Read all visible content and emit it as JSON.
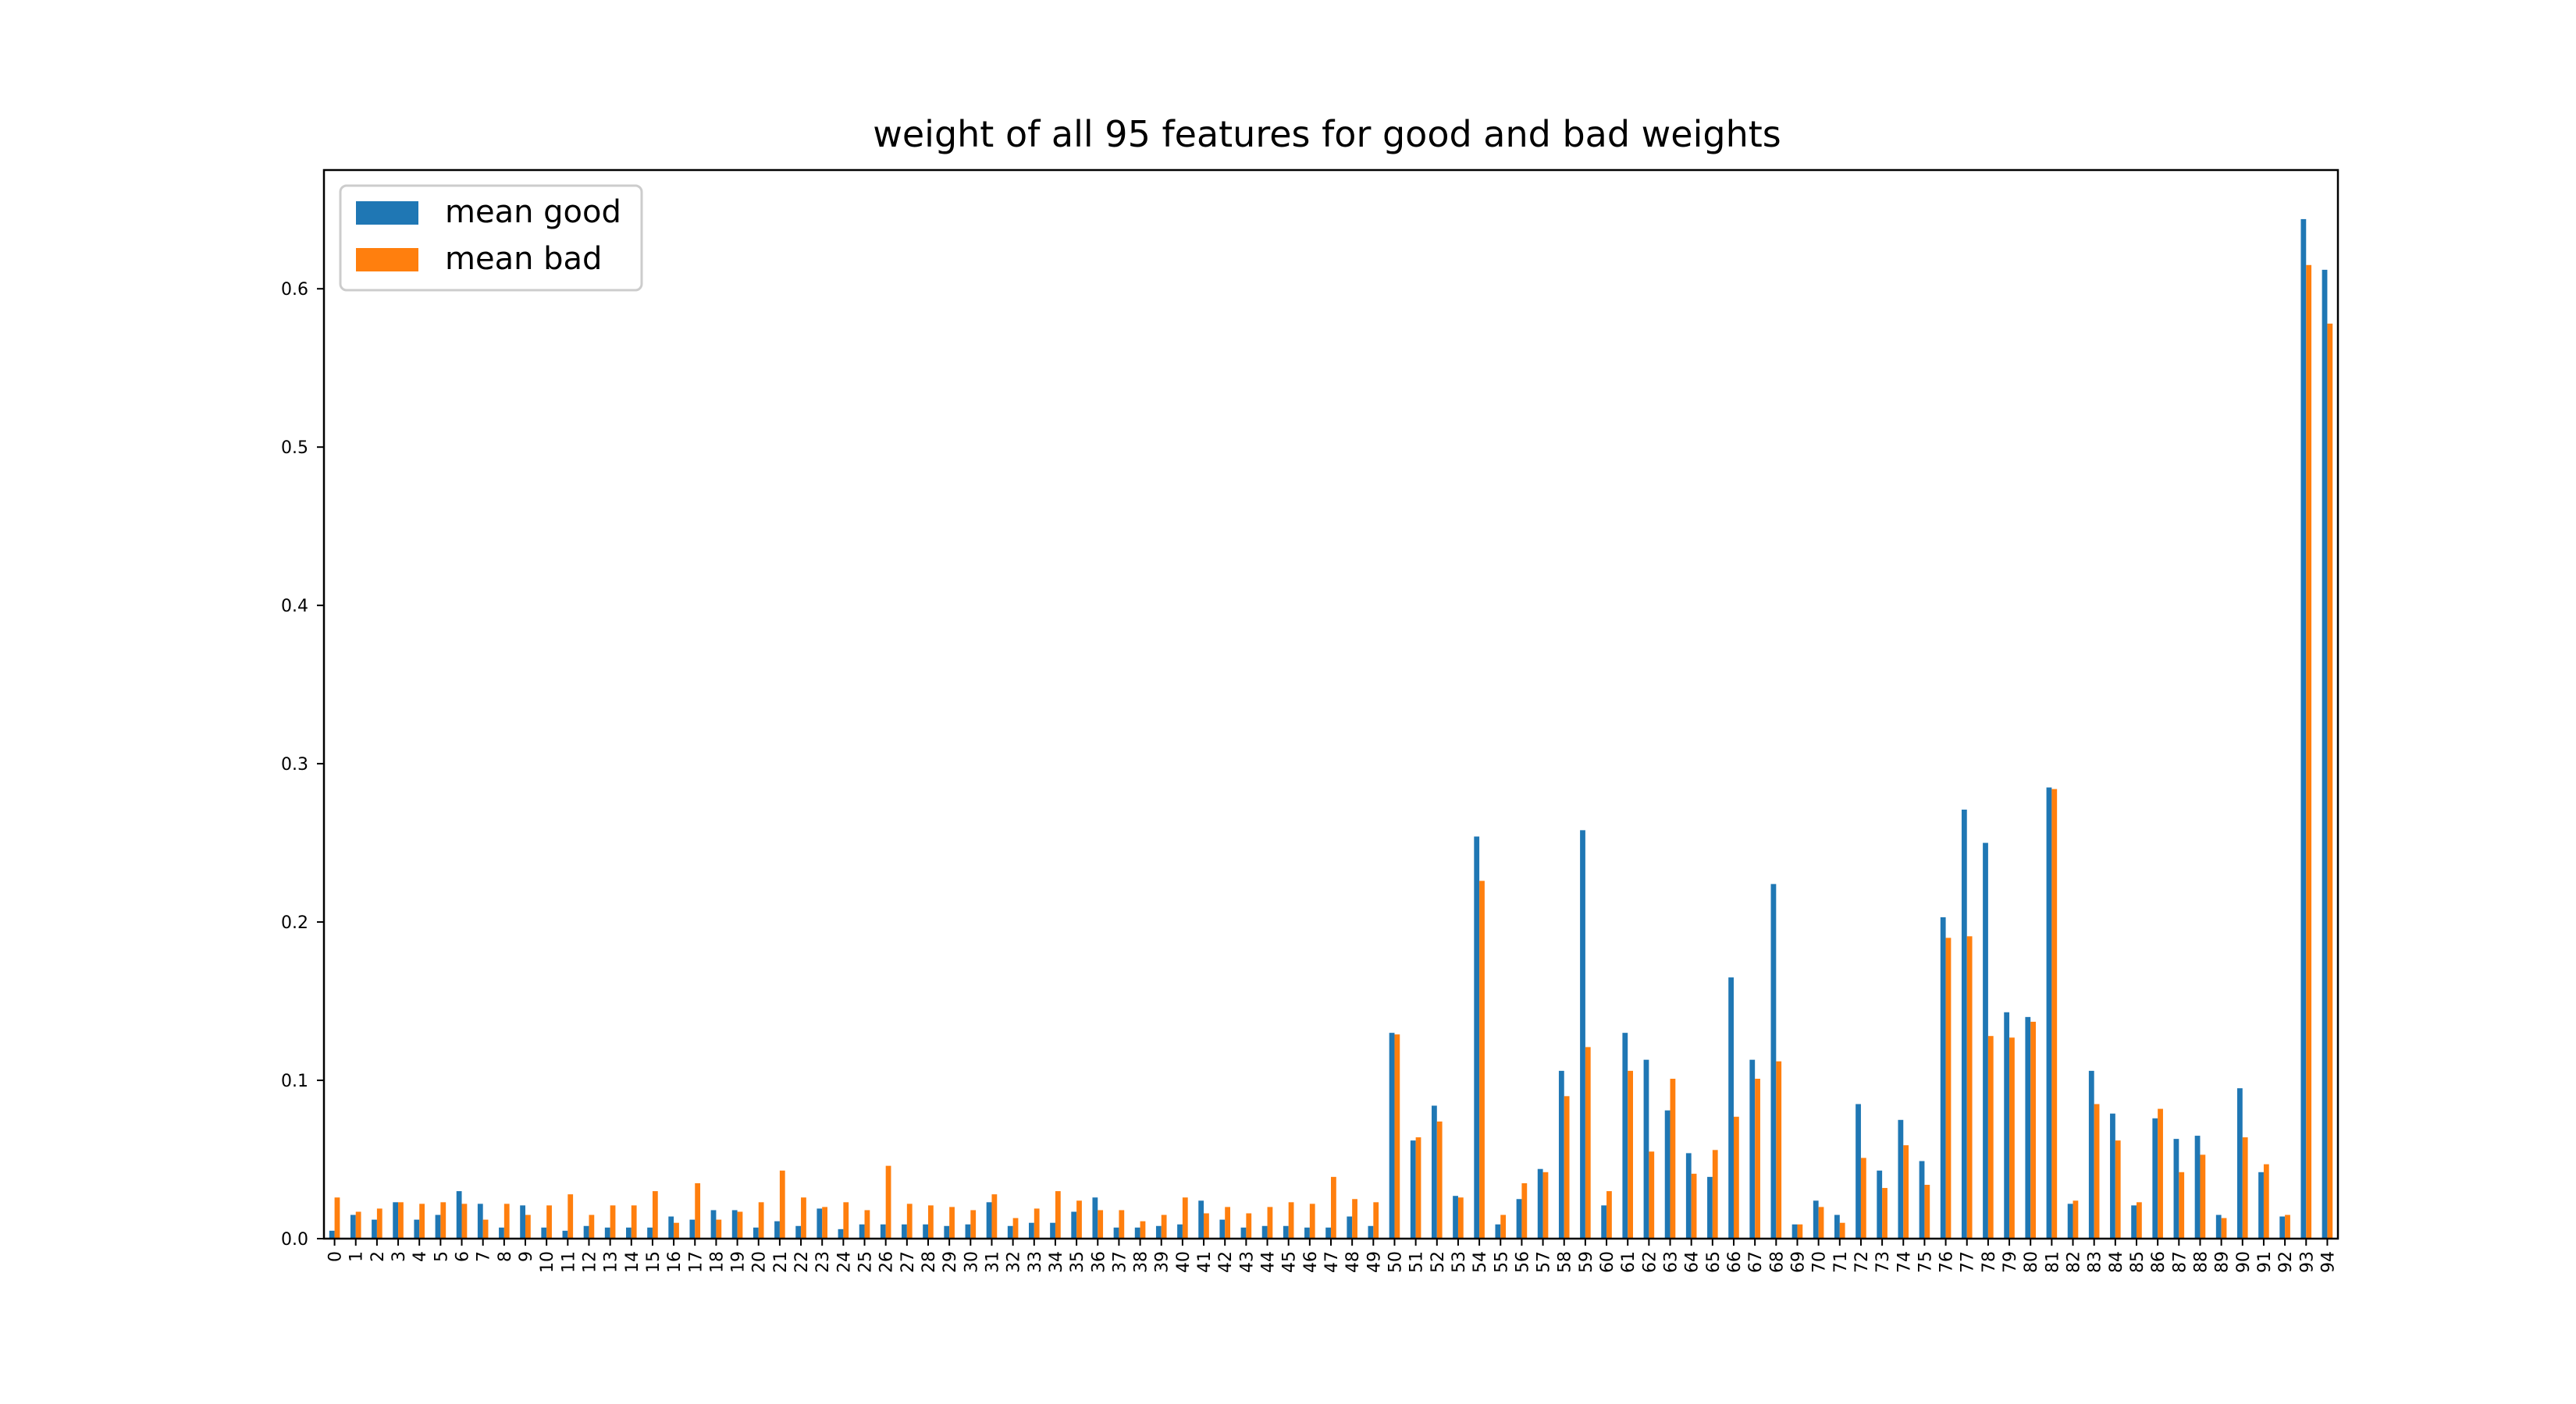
{
  "chart_data": {
    "type": "bar",
    "title": "weight of all 95 features for good and bad weights",
    "xlabel": "",
    "ylabel": "",
    "ylim": [
      0.0,
      0.675
    ],
    "y_ticks": [
      0.0,
      0.1,
      0.2,
      0.3,
      0.4,
      0.5,
      0.6
    ],
    "y_tick_labels": [
      "0.0",
      "0.1",
      "0.2",
      "0.3",
      "0.4",
      "0.5",
      "0.6"
    ],
    "grid": false,
    "legend": {
      "position": "top-left",
      "entries": [
        "mean good",
        "mean bad"
      ]
    },
    "categories": [
      "0",
      "1",
      "2",
      "3",
      "4",
      "5",
      "6",
      "7",
      "8",
      "9",
      "10",
      "11",
      "12",
      "13",
      "14",
      "15",
      "16",
      "17",
      "18",
      "19",
      "20",
      "21",
      "22",
      "23",
      "24",
      "25",
      "26",
      "27",
      "28",
      "29",
      "30",
      "31",
      "32",
      "33",
      "34",
      "35",
      "36",
      "37",
      "38",
      "39",
      "40",
      "41",
      "42",
      "43",
      "44",
      "45",
      "46",
      "47",
      "48",
      "49",
      "50",
      "51",
      "52",
      "53",
      "54",
      "55",
      "56",
      "57",
      "58",
      "59",
      "60",
      "61",
      "62",
      "63",
      "64",
      "65",
      "66",
      "67",
      "68",
      "69",
      "70",
      "71",
      "72",
      "73",
      "74",
      "75",
      "76",
      "77",
      "78",
      "79",
      "80",
      "81",
      "82",
      "83",
      "84",
      "85",
      "86",
      "87",
      "88",
      "89",
      "90",
      "91",
      "92",
      "93",
      "94"
    ],
    "series": [
      {
        "name": "mean good",
        "color": "#1f77b4",
        "values": [
          0.005,
          0.015,
          0.012,
          0.023,
          0.012,
          0.015,
          0.03,
          0.022,
          0.007,
          0.021,
          0.007,
          0.005,
          0.008,
          0.007,
          0.007,
          0.007,
          0.014,
          0.012,
          0.018,
          0.018,
          0.007,
          0.011,
          0.008,
          0.019,
          0.006,
          0.009,
          0.009,
          0.009,
          0.009,
          0.008,
          0.009,
          0.023,
          0.008,
          0.01,
          0.01,
          0.017,
          0.026,
          0.007,
          0.007,
          0.008,
          0.009,
          0.024,
          0.012,
          0.007,
          0.008,
          0.008,
          0.007,
          0.007,
          0.014,
          0.008,
          0.13,
          0.062,
          0.084,
          0.027,
          0.254,
          0.009,
          0.025,
          0.044,
          0.106,
          0.258,
          0.021,
          0.13,
          0.113,
          0.081,
          0.054,
          0.039,
          0.165,
          0.113,
          0.224,
          0.009,
          0.024,
          0.015,
          0.085,
          0.043,
          0.075,
          0.049,
          0.203,
          0.271,
          0.25,
          0.143,
          0.14,
          0.285,
          0.022,
          0.106,
          0.079,
          0.021,
          0.076,
          0.063,
          0.065,
          0.015,
          0.095,
          0.042,
          0.014,
          0.644,
          0.612
        ]
      },
      {
        "name": "mean bad",
        "color": "#ff7f0e",
        "values": [
          0.026,
          0.017,
          0.019,
          0.023,
          0.022,
          0.023,
          0.022,
          0.012,
          0.022,
          0.015,
          0.021,
          0.028,
          0.015,
          0.021,
          0.021,
          0.03,
          0.01,
          0.035,
          0.012,
          0.017,
          0.023,
          0.043,
          0.026,
          0.02,
          0.023,
          0.018,
          0.046,
          0.022,
          0.021,
          0.02,
          0.018,
          0.028,
          0.013,
          0.019,
          0.03,
          0.024,
          0.018,
          0.018,
          0.011,
          0.015,
          0.026,
          0.016,
          0.02,
          0.016,
          0.02,
          0.023,
          0.022,
          0.039,
          0.025,
          0.023,
          0.129,
          0.064,
          0.074,
          0.026,
          0.226,
          0.015,
          0.035,
          0.042,
          0.09,
          0.121,
          0.03,
          0.106,
          0.055,
          0.101,
          0.041,
          0.056,
          0.077,
          0.101,
          0.112,
          0.009,
          0.02,
          0.01,
          0.051,
          0.032,
          0.059,
          0.034,
          0.19,
          0.191,
          0.128,
          0.127,
          0.137,
          0.284,
          0.024,
          0.085,
          0.062,
          0.023,
          0.082,
          0.042,
          0.053,
          0.013,
          0.064,
          0.047,
          0.015,
          0.615,
          0.578
        ]
      }
    ]
  }
}
